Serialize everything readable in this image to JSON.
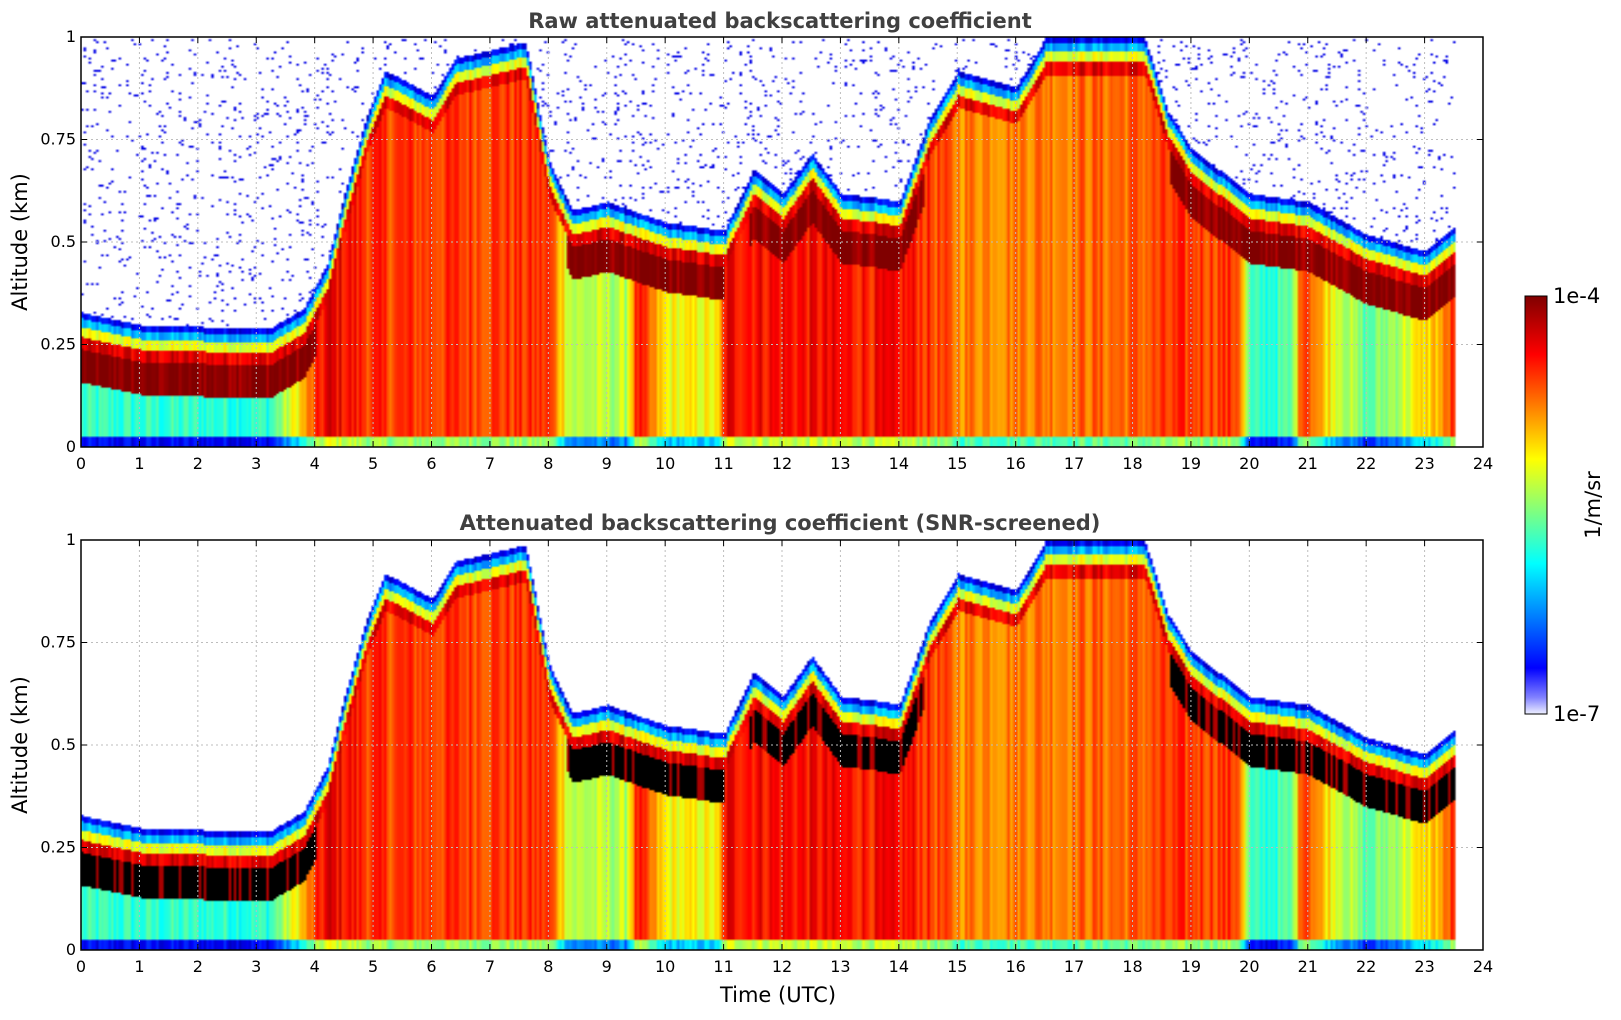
{
  "chart_data": [
    {
      "type": "heatmap",
      "title": "Raw attenuated backscattering coefficient",
      "xlabel": "",
      "ylabel": "Altitude (km)",
      "xlim": [
        0,
        24
      ],
      "ylim": [
        0,
        1
      ],
      "xticks": [
        "0",
        "1",
        "2",
        "3",
        "4",
        "5",
        "6",
        "7",
        "8",
        "9",
        "10",
        "11",
        "12",
        "13",
        "14",
        "15",
        "16",
        "17",
        "18",
        "19",
        "20",
        "21",
        "22",
        "23",
        "24"
      ],
      "yticks": [
        "0",
        "0.25",
        "0.5",
        "0.75",
        "1"
      ],
      "grid": true,
      "data_end_hour": 23.5,
      "screened": false
    },
    {
      "type": "heatmap",
      "title": "Attenuated backscattering coefficient (SNR-screened)",
      "xlabel": "Time (UTC)",
      "ylabel": "Altitude (km)",
      "xlim": [
        0,
        24
      ],
      "ylim": [
        0,
        1
      ],
      "xticks": [
        "0",
        "1",
        "2",
        "3",
        "4",
        "5",
        "6",
        "7",
        "8",
        "9",
        "10",
        "11",
        "12",
        "13",
        "14",
        "15",
        "16",
        "17",
        "18",
        "19",
        "20",
        "21",
        "22",
        "23",
        "24"
      ],
      "yticks": [
        "0",
        "0.25",
        "0.5",
        "0.75",
        "1"
      ],
      "grid": true,
      "data_end_hour": 23.5,
      "screened": true
    }
  ],
  "colorbar": {
    "label": "1/m/sr",
    "max_label": "1e-4",
    "min_label": "1e-7",
    "colormap": "jet"
  },
  "colors": {
    "title": "#404040",
    "grid": "#bdbdbd",
    "screened": "#000000"
  }
}
